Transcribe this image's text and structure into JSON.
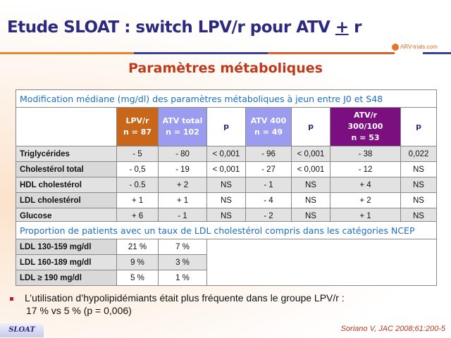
{
  "title": {
    "main": "Etude SLOAT : switch LPV/r pour ATV ",
    "pm": "+",
    "end": " r"
  },
  "logo": "ARV-trials.com",
  "subtitle": "Paramètres métaboliques",
  "table1": {
    "caption": "Modification médiane (mg/dl) des paramètres métaboliques à jeun entre J0 et S48",
    "headers": [
      {
        "l1": "LPV/r",
        "l2": "n = 87",
        "color": "#c8661a"
      },
      {
        "l1": "ATV total",
        "l2": "n = 102",
        "color": "#9b9bf0"
      },
      {
        "l1": "p",
        "l2": ""
      },
      {
        "l1": "ATV 400",
        "l2": "n = 49",
        "color": "#9b9bf0"
      },
      {
        "l1": "p",
        "l2": ""
      },
      {
        "l1": "ATV/r",
        "l2": "300/100",
        "l3": "n = 53",
        "color": "#7b0f80"
      },
      {
        "l1": "p",
        "l2": ""
      }
    ],
    "rows": [
      {
        "label": "Triglycérides",
        "v": [
          "- 5",
          "- 80",
          "< 0,001",
          "- 96",
          "< 0,001",
          "- 38",
          "0,022"
        ]
      },
      {
        "label": "Cholestérol total",
        "v": [
          "- 0,5",
          "- 19",
          "< 0,001",
          "- 27",
          "< 0,001",
          "- 12",
          "NS"
        ]
      },
      {
        "label": "HDL cholestérol",
        "v": [
          "- 0.5",
          "+ 2",
          "NS",
          "- 1",
          "NS",
          "+ 4",
          "NS"
        ]
      },
      {
        "label": "LDL cholestérol",
        "v": [
          "+ 1",
          "+ 1",
          "NS",
          "- 4",
          "NS",
          "+ 2",
          "NS"
        ]
      },
      {
        "label": "Glucose",
        "v": [
          "+ 6",
          "- 1",
          "NS",
          "- 2",
          "NS",
          "+ 1",
          "NS"
        ]
      }
    ]
  },
  "table2": {
    "caption": "Proportion de patients avec un taux de LDL cholestérol compris dans les catégories NCEP",
    "rows": [
      {
        "label": "LDL 130-159 mg/dl",
        "v": [
          "21 %",
          "7 %"
        ]
      },
      {
        "label": "LDL 160-189 mg/dl",
        "v": [
          "9 %",
          "3 %"
        ]
      },
      {
        "label": "LDL ≥ 190 mg/dl",
        "v": [
          "5 %",
          "1 %"
        ]
      }
    ]
  },
  "bullet": {
    "line1": "L’utilisation d’hypolipidémiants était plus fréquente dans le groupe LPV/r :",
    "line2": "17 % vs 5 % (p = 0,006)"
  },
  "footer": {
    "tag": "SLOAT",
    "reference": "Soriano V, JAC 2008;61:200-5"
  }
}
